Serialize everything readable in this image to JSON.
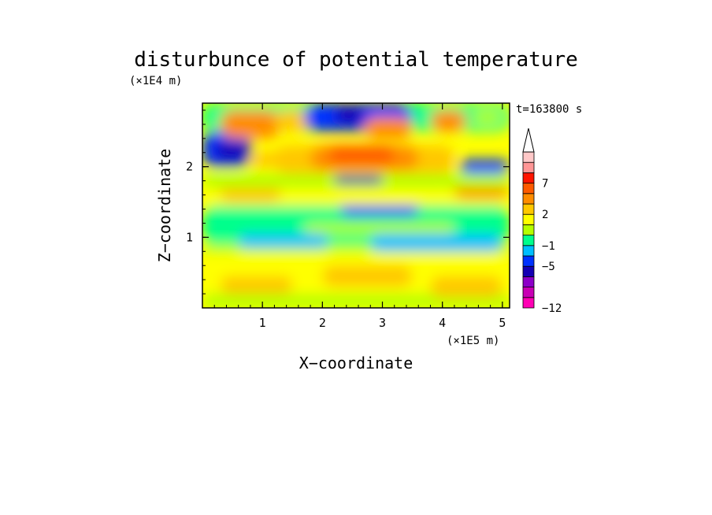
{
  "chart_data": {
    "type": "heatmap",
    "title": "disturbunce of potential temperature",
    "time_label": "t=163800 s",
    "xlabel": "X−coordinate",
    "ylabel": "Z−coordinate",
    "x_unit": "(×1E5 m)",
    "y_unit": "(×1E4 m)",
    "xlim": [
      0,
      5.12
    ],
    "ylim": [
      0,
      2.9
    ],
    "x_ticks": [
      1,
      2,
      3,
      4,
      5
    ],
    "y_ticks": [
      1,
      2
    ],
    "colorbar": {
      "levels": [
        -12,
        -10,
        -8,
        -6,
        -5,
        -3,
        -1,
        0,
        1,
        2,
        3,
        5,
        7,
        9,
        11
      ],
      "colors": [
        "#ff00b4",
        "#c800b4",
        "#8c00c8",
        "#1400b4",
        "#0032ff",
        "#00beff",
        "#00ff8c",
        "#b4ff00",
        "#ffff00",
        "#ffc800",
        "#ff8c00",
        "#ff5a00",
        "#ff1400",
        "#ff9696",
        "#ffc8c8"
      ],
      "tick_labels": [
        "−12",
        "−5",
        "−1",
        "2",
        "7"
      ],
      "tick_values": [
        -12,
        -5,
        -1,
        2,
        7
      ],
      "extend": "max"
    },
    "regions": [
      {
        "x": 0.0,
        "y": 0.0,
        "w": 5.12,
        "h": 0.78,
        "v": 1.3
      },
      {
        "x": 0.0,
        "y": 0.0,
        "w": 5.12,
        "h": 0.2,
        "v": 0.4
      },
      {
        "x": 0.3,
        "y": 0.2,
        "w": 1.2,
        "h": 0.25,
        "v": 2.4
      },
      {
        "x": 2.0,
        "y": 0.3,
        "w": 1.5,
        "h": 0.3,
        "v": 2.4
      },
      {
        "x": 3.8,
        "y": 0.15,
        "w": 1.2,
        "h": 0.3,
        "v": 2.4
      },
      {
        "x": 0.0,
        "y": 0.78,
        "w": 5.12,
        "h": 0.12,
        "v": 0.5
      },
      {
        "x": 0.0,
        "y": 0.9,
        "w": 5.12,
        "h": 0.55,
        "v": -0.5
      },
      {
        "x": 0.6,
        "y": 0.85,
        "w": 1.5,
        "h": 0.2,
        "v": -1.3
      },
      {
        "x": 2.8,
        "y": 0.8,
        "w": 2.2,
        "h": 0.25,
        "v": -1.3
      },
      {
        "x": 1.7,
        "y": 1.05,
        "w": 2.5,
        "h": 0.15,
        "v": 0.5
      },
      {
        "x": 2.3,
        "y": 1.3,
        "w": 1.3,
        "h": 0.2,
        "v": -4.0
      },
      {
        "x": 0.0,
        "y": 1.45,
        "w": 5.12,
        "h": 0.25,
        "v": 1.5
      },
      {
        "x": 0.3,
        "y": 1.5,
        "w": 1.0,
        "h": 0.25,
        "v": 2.4
      },
      {
        "x": 4.2,
        "y": 1.55,
        "w": 0.9,
        "h": 0.25,
        "v": 3.5
      },
      {
        "x": 0.0,
        "y": 1.7,
        "w": 5.12,
        "h": 0.2,
        "v": 0.5
      },
      {
        "x": 2.2,
        "y": 1.75,
        "w": 0.8,
        "h": 0.12,
        "v": -5.5
      },
      {
        "x": 1.2,
        "y": 1.9,
        "w": 3.0,
        "h": 0.4,
        "v": 2.4
      },
      {
        "x": 1.8,
        "y": 1.95,
        "w": 1.8,
        "h": 0.35,
        "v": 4.0
      },
      {
        "x": 2.1,
        "y": 2.05,
        "w": 1.1,
        "h": 0.25,
        "v": 6.0
      },
      {
        "x": 0.0,
        "y": 2.0,
        "w": 0.8,
        "h": 0.5,
        "v": -4.0
      },
      {
        "x": 0.2,
        "y": 2.1,
        "w": 0.6,
        "h": 0.25,
        "v": -5.5
      },
      {
        "x": 0.8,
        "y": 2.0,
        "w": 0.9,
        "h": 0.2,
        "v": 2.4
      },
      {
        "x": 4.3,
        "y": 1.9,
        "w": 0.8,
        "h": 0.2,
        "v": -4.0
      },
      {
        "x": 0.0,
        "y": 2.5,
        "w": 5.12,
        "h": 0.4,
        "v": -0.5
      },
      {
        "x": 0.3,
        "y": 2.4,
        "w": 1.0,
        "h": 0.4,
        "v": 3.5
      },
      {
        "x": 1.2,
        "y": 2.5,
        "w": 0.6,
        "h": 0.3,
        "v": 2.4
      },
      {
        "x": 1.7,
        "y": 2.5,
        "w": 1.8,
        "h": 0.4,
        "v": -4.0
      },
      {
        "x": 2.2,
        "y": 2.6,
        "w": 0.5,
        "h": 0.25,
        "v": -5.5
      },
      {
        "x": 2.7,
        "y": 2.4,
        "w": 0.8,
        "h": 0.3,
        "v": 3.5
      },
      {
        "x": 3.8,
        "y": 2.5,
        "w": 0.6,
        "h": 0.3,
        "v": 3.5
      },
      {
        "x": 4.5,
        "y": 2.6,
        "w": 0.5,
        "h": 0.2,
        "v": 0.5
      }
    ]
  }
}
